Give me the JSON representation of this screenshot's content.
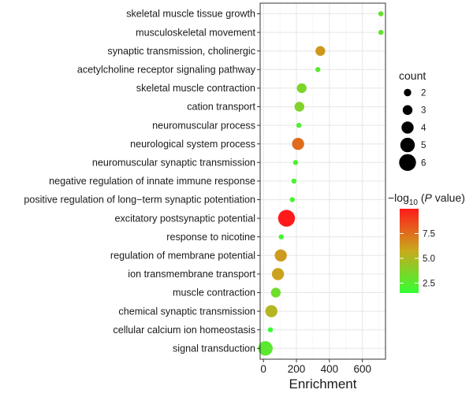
{
  "chart_data": {
    "type": "scatter",
    "title": "",
    "xlabel": "Enrichment",
    "ylabel": "",
    "xlim": [
      -20,
      740
    ],
    "xticks": [
      0,
      200,
      400,
      600
    ],
    "grid": true,
    "terms": [
      {
        "label": "skeletal muscle tissue growth",
        "enrichment": 712,
        "count": 1,
        "neglog10p": 2.9
      },
      {
        "label": "musculoskeletal movement",
        "enrichment": 712,
        "count": 1,
        "neglog10p": 2.9
      },
      {
        "label": "synaptic transmission, cholinergic",
        "enrichment": 345,
        "count": 3,
        "neglog10p": 6.3
      },
      {
        "label": "acetylcholine receptor signaling pathway",
        "enrichment": 330,
        "count": 1,
        "neglog10p": 2.6
      },
      {
        "label": "skeletal muscle contraction",
        "enrichment": 232,
        "count": 3,
        "neglog10p": 3.6
      },
      {
        "label": "cation transport",
        "enrichment": 218,
        "count": 3,
        "neglog10p": 3.7
      },
      {
        "label": "neuromuscular process",
        "enrichment": 215,
        "count": 1,
        "neglog10p": 2.3
      },
      {
        "label": "neurological system process",
        "enrichment": 210,
        "count": 4,
        "neglog10p": 7.6
      },
      {
        "label": "neuromuscular synaptic transmission",
        "enrichment": 195,
        "count": 1,
        "neglog10p": 2.2
      },
      {
        "label": "negative regulation of innate immune response",
        "enrichment": 185,
        "count": 1,
        "neglog10p": 2.1
      },
      {
        "label": "positive regulation of long−term synaptic potentiation",
        "enrichment": 175,
        "count": 1,
        "neglog10p": 2.1
      },
      {
        "label": "excitatory postsynaptic potential",
        "enrichment": 140,
        "count": 6,
        "neglog10p": 10.0
      },
      {
        "label": "response to nicotine",
        "enrichment": 108,
        "count": 1,
        "neglog10p": 1.9
      },
      {
        "label": "regulation of membrane potential",
        "enrichment": 105,
        "count": 4,
        "neglog10p": 6.2
      },
      {
        "label": "ion transmembrane transport",
        "enrichment": 88,
        "count": 4,
        "neglog10p": 6.0
      },
      {
        "label": "muscle contraction",
        "enrichment": 75,
        "count": 3,
        "neglog10p": 3.2
      },
      {
        "label": "chemical synaptic transmission",
        "enrichment": 48,
        "count": 4,
        "neglog10p": 5.2
      },
      {
        "label": "cellular calcium ion homeostasis",
        "enrichment": 42,
        "count": 1,
        "neglog10p": 1.6
      },
      {
        "label": "signal transduction",
        "enrichment": 12,
        "count": 5,
        "neglog10p": 2.6
      }
    ],
    "size_legend": {
      "title": "count",
      "values": [
        2,
        3,
        4,
        5,
        6
      ]
    },
    "color_legend": {
      "title_main": "−log",
      "title_sub": "10",
      "title_paren_open": " (",
      "title_italic": "P",
      "title_rest": " value)",
      "range": [
        1.5,
        10.0
      ],
      "ticks": [
        2.5,
        5.0,
        7.5
      ],
      "tick_labels": [
        "2.5",
        "5.0",
        "7.5"
      ],
      "colors": {
        "low": "#33ff33",
        "mid": "#c8aa1e",
        "high": "#ff1a1a"
      }
    },
    "colors": {
      "panel_border": "#333333",
      "grid_major": "#e6e6e6",
      "grid_minor": "#f3f3f3",
      "tick": "#333333",
      "text": "#1a1a1a",
      "point_outline": "none"
    }
  }
}
